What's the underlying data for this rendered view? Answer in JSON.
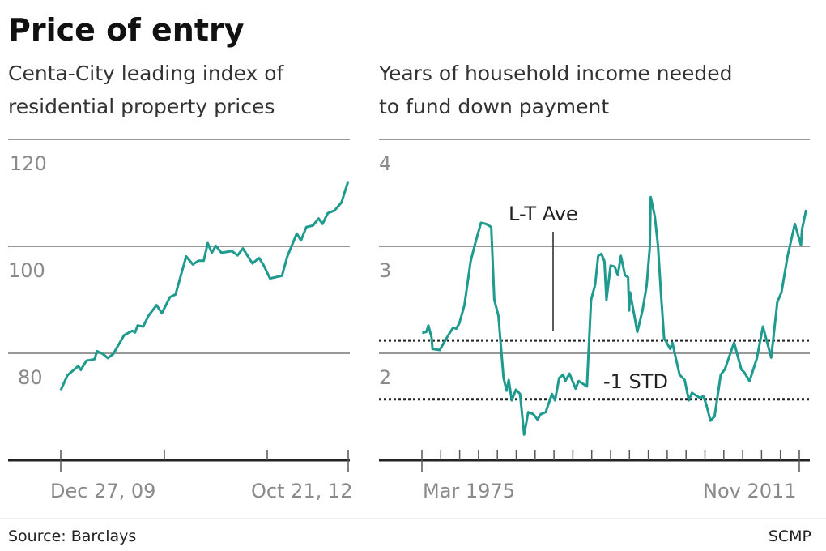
{
  "title": "Price of entry",
  "source": "Source: Barclays",
  "credit": "SCMP",
  "colors": {
    "line": "#1f9a8e"
  },
  "chart_data": [
    {
      "type": "line",
      "title": "Centa-City leading index of residential property prices",
      "title_lines": [
        "Centa-City leading index of",
        "residential property prices"
      ],
      "xlabel": "",
      "ylabel": "",
      "ylim": [
        60,
        120
      ],
      "yticks": [
        120,
        100,
        80
      ],
      "ytick_labels": [
        "120",
        "100",
        "80"
      ],
      "xtick_labels": [
        "Dec 27, 09",
        "Oct 21, 12"
      ],
      "grid": true,
      "x": [
        "2009-12-27",
        "2010-01-20",
        "2010-02-28",
        "2010-03-09",
        "2010-03-29",
        "2010-04-27",
        "2010-05-06",
        "2010-05-26",
        "2010-06-14",
        "2010-07-03",
        "2010-08-11",
        "2010-09-09",
        "2010-09-19",
        "2010-09-28",
        "2010-10-18",
        "2010-11-06",
        "2010-12-05",
        "2010-12-24",
        "2011-01-22",
        "2011-02-11",
        "2011-03-21",
        "2011-04-14",
        "2011-05-04",
        "2011-05-23",
        "2011-06-06",
        "2011-06-21",
        "2011-07-05",
        "2011-07-25",
        "2011-09-01",
        "2011-09-21",
        "2011-10-10",
        "2011-11-13",
        "2011-12-07",
        "2011-12-22",
        "2012-01-15",
        "2012-02-27",
        "2012-03-17",
        "2012-04-20",
        "2012-05-05",
        "2012-05-24",
        "2012-06-17",
        "2012-07-07",
        "2012-07-21",
        "2012-08-09",
        "2012-09-02",
        "2012-09-27",
        "2012-10-21"
      ],
      "values": [
        73.1,
        75.9,
        77.6,
        76.9,
        78.6,
        78.9,
        80.4,
        79.9,
        79.1,
        79.9,
        83.4,
        84.2,
        83.9,
        85.2,
        85.0,
        87.0,
        89.0,
        87.5,
        90.5,
        91.0,
        98.1,
        96.6,
        97.3,
        97.3,
        100.6,
        98.8,
        100.1,
        98.8,
        99.1,
        98.3,
        99.6,
        96.8,
        97.8,
        96.6,
        94.0,
        94.5,
        98.1,
        102.4,
        101.1,
        103.6,
        103.9,
        105.2,
        104.2,
        106.2,
        106.7,
        108.2,
        112.2
      ]
    },
    {
      "type": "line",
      "title": "Years of household income needed to fund down payment",
      "title_lines": [
        "Years of household income needed",
        "to fund down payment"
      ],
      "xlabel": "",
      "ylabel": "",
      "ylim": [
        1,
        4
      ],
      "yticks": [
        4,
        3,
        2
      ],
      "ytick_labels": [
        "4",
        "3",
        "2"
      ],
      "xtick_labels": [
        "Mar 1975",
        "Nov 2011"
      ],
      "grid": true,
      "annotations": [
        {
          "label": "L-T Ave",
          "value": 2.12
        },
        {
          "label": "-1 STD",
          "value": 1.57
        }
      ],
      "x": [
        1975.2,
        1975.6,
        1975.8,
        1976.1,
        1976.2,
        1976.9,
        1977.2,
        1977.8,
        1978.2,
        1978.5,
        1978.8,
        1979.3,
        1979.9,
        1980.3,
        1980.9,
        1981.4,
        1981.9,
        1982.2,
        1982.6,
        1983.1,
        1983.4,
        1983.6,
        1983.9,
        1984.3,
        1984.7,
        1985.1,
        1985.5,
        1986.0,
        1986.4,
        1986.7,
        1987.2,
        1987.8,
        1988.1,
        1988.5,
        1988.9,
        1989.1,
        1989.5,
        1990.1,
        1990.4,
        1991.2,
        1991.6,
        1992.0,
        1992.3,
        1992.6,
        1992.9,
        1993.1,
        1993.5,
        1993.9,
        1994.2,
        1994.5,
        1994.9,
        1995.2,
        1995.3,
        1995.4,
        1996.1,
        1996.6,
        1997.0,
        1997.3,
        1997.4,
        1997.8,
        1998.1,
        1998.4,
        1998.7,
        1999.3,
        1999.5,
        1999.8,
        2000.2,
        2000.7,
        2001.1,
        2001.4,
        2002.2,
        2002.5,
        2002.8,
        2003.2,
        2003.6,
        2004.2,
        2004.6,
        2005.5,
        2006.2,
        2006.5,
        2007.0,
        2007.7,
        2008.3,
        2009.1,
        2009.7,
        2010.1,
        2010.7,
        2011.4,
        2012.0,
        2012.1,
        2012.5
      ],
      "values": [
        2.19,
        2.2,
        2.26,
        2.15,
        2.04,
        2.03,
        2.08,
        2.18,
        2.24,
        2.23,
        2.28,
        2.45,
        2.86,
        3.01,
        3.22,
        3.21,
        3.18,
        2.5,
        2.35,
        1.77,
        1.65,
        1.75,
        1.56,
        1.66,
        1.62,
        1.24,
        1.45,
        1.43,
        1.38,
        1.43,
        1.45,
        1.62,
        1.56,
        1.77,
        1.8,
        1.74,
        1.81,
        1.67,
        1.74,
        1.69,
        2.5,
        2.64,
        2.91,
        2.93,
        2.86,
        2.5,
        2.82,
        2.81,
        2.73,
        2.91,
        2.73,
        2.71,
        2.4,
        2.57,
        2.2,
        2.4,
        2.63,
        2.98,
        3.46,
        3.28,
        3.01,
        2.55,
        2.14,
        2.04,
        2.1,
        1.97,
        1.8,
        1.75,
        1.56,
        1.63,
        1.58,
        1.6,
        1.52,
        1.37,
        1.41,
        1.8,
        1.85,
        2.1,
        1.85,
        1.82,
        1.74,
        1.95,
        2.25,
        1.96,
        2.48,
        2.57,
        2.91,
        3.21,
        3.01,
        3.16,
        3.34
      ]
    }
  ]
}
